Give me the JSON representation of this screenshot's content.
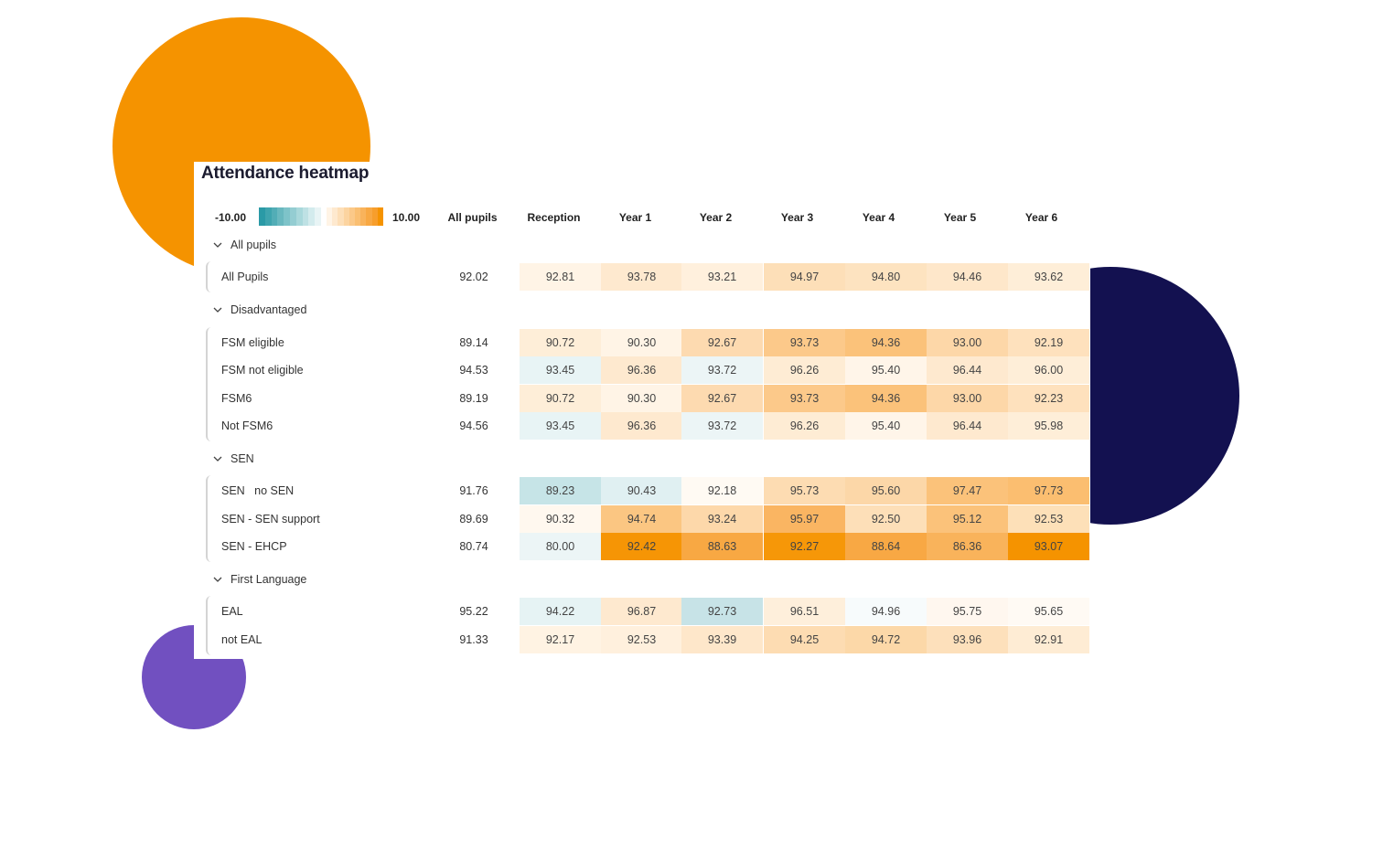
{
  "title": "Attendance heatmap",
  "legend": {
    "min_label": "-10.00",
    "max_label": "10.00",
    "negative_colors": [
      "#2a9aa6",
      "#3ea4ae",
      "#52adb6",
      "#69b8bf",
      "#7ec3c9",
      "#94cdd2",
      "#a9d8db",
      "#bee1e4",
      "#d3ebed",
      "#e8f4f5"
    ],
    "positive_colors": [
      "#fff4e6",
      "#fee9cf",
      "#fddfb8",
      "#fcd4a0",
      "#fbc989",
      "#fabf72",
      "#f9b35b",
      "#f8a843",
      "#f79e2c",
      "#f59300"
    ]
  },
  "columns": [
    "All pupils",
    "Reception",
    "Year 1",
    "Year 2",
    "Year 3",
    "Year 4",
    "Year 5",
    "Year 6"
  ],
  "groups": [
    {
      "name": "All pupils",
      "expanded": true,
      "rows": [
        {
          "label": "All Pupils",
          "all": "92.02",
          "values": [
            "92.81",
            "93.78",
            "93.21",
            "94.97",
            "94.80",
            "94.46",
            "93.62"
          ],
          "colors": [
            "#fff4e6",
            "#fee9cf",
            "#fff0dd",
            "#fddfb8",
            "#fde3c0",
            "#fee7ca",
            "#feeed8"
          ]
        }
      ]
    },
    {
      "name": "Disadvantaged",
      "expanded": true,
      "rows": [
        {
          "label": "FSM eligible",
          "all": "89.14",
          "values": [
            "90.72",
            "90.30",
            "92.67",
            "93.73",
            "94.36",
            "93.00",
            "92.19"
          ],
          "colors": [
            "#feeed8",
            "#fff4e6",
            "#fddab0",
            "#fcc98a",
            "#fbc27a",
            "#fdd7a8",
            "#fee1bd"
          ]
        },
        {
          "label": "FSM not eligible",
          "all": "94.53",
          "values": [
            "93.45",
            "96.36",
            "93.72",
            "96.26",
            "95.40",
            "96.44",
            "96.00"
          ],
          "colors": [
            "#e8f4f5",
            "#fee9cf",
            "#ecf5f6",
            "#feecd4",
            "#fff5e9",
            "#fee9cf",
            "#feeed8"
          ]
        },
        {
          "label": "FSM6",
          "all": "89.19",
          "values": [
            "90.72",
            "90.30",
            "92.67",
            "93.73",
            "94.36",
            "93.00",
            "92.23"
          ],
          "colors": [
            "#feeed8",
            "#fff4e6",
            "#fddab0",
            "#fcc98a",
            "#fbc27a",
            "#fdd7a8",
            "#fee1bd"
          ]
        },
        {
          "label": "Not FSM6",
          "all": "94.56",
          "values": [
            "93.45",
            "96.36",
            "93.72",
            "96.26",
            "95.40",
            "96.44",
            "95.98"
          ],
          "colors": [
            "#e8f4f5",
            "#fee9cf",
            "#ecf5f6",
            "#feecd4",
            "#fff5e9",
            "#fee9cf",
            "#feeed8"
          ]
        }
      ]
    },
    {
      "name": "SEN",
      "expanded": true,
      "rows": [
        {
          "label": "SEN   no SEN",
          "all": "91.76",
          "values": [
            "89.23",
            "90.43",
            "92.18",
            "95.73",
            "95.60",
            "97.47",
            "97.73"
          ],
          "colors": [
            "#c6e4e7",
            "#e0f0f2",
            "#fffaf3",
            "#fddcb2",
            "#fcd7a8",
            "#fbc27a",
            "#fbbe70"
          ]
        },
        {
          "label": "SEN - SEN support",
          "all": "89.69",
          "values": [
            "90.32",
            "94.74",
            "93.24",
            "95.97",
            "92.50",
            "95.12",
            "92.53"
          ],
          "colors": [
            "#fff8ef",
            "#fbc682",
            "#fdd8aa",
            "#fab562",
            "#fddfb8",
            "#fbc27a",
            "#fde0b8"
          ]
        },
        {
          "label": "SEN - EHCP",
          "all": "80.74",
          "values": [
            "80.00",
            "92.42",
            "88.63",
            "92.27",
            "88.64",
            "86.36",
            "93.07"
          ],
          "colors": [
            "#ecf5f6",
            "#f69505",
            "#f8a843",
            "#f69708",
            "#f8a844",
            "#f9b35b",
            "#f59300"
          ]
        }
      ]
    },
    {
      "name": "First Language",
      "expanded": true,
      "rows": [
        {
          "label": "EAL",
          "all": "95.22",
          "values": [
            "94.22",
            "96.87",
            "92.73",
            "96.51",
            "94.96",
            "95.75",
            "95.65"
          ],
          "colors": [
            "#e6f3f4",
            "#fee9cf",
            "#c7e3e7",
            "#feefdb",
            "#f7fbfc",
            "#fff7ef",
            "#fffaf4"
          ]
        },
        {
          "label": "not EAL",
          "all": "91.33",
          "values": [
            "92.17",
            "92.53",
            "93.39",
            "94.25",
            "94.72",
            "93.96",
            "92.91"
          ],
          "colors": [
            "#fff3e3",
            "#fff0dd",
            "#fee7ca",
            "#fddcb2",
            "#fcd8a8",
            "#fde0bb",
            "#feecd4"
          ]
        }
      ]
    }
  ],
  "chart_data": {
    "type": "heatmap",
    "title": "Attendance heatmap",
    "xlabel": "",
    "ylabel": "",
    "color_scale": {
      "min": -10.0,
      "max": 10.0,
      "min_color": "#2a9aa6",
      "mid_color": "#ffffff",
      "max_color": "#f59300"
    },
    "categories": [
      "Reception",
      "Year 1",
      "Year 2",
      "Year 3",
      "Year 4",
      "Year 5",
      "Year 6"
    ],
    "row_groups": [
      "All pupils",
      "Disadvantaged",
      "Disadvantaged",
      "Disadvantaged",
      "Disadvantaged",
      "SEN",
      "SEN",
      "SEN",
      "First Language",
      "First Language"
    ],
    "rows": [
      "All Pupils",
      "FSM eligible",
      "FSM not eligible",
      "FSM6",
      "Not FSM6",
      "SEN   no SEN",
      "SEN - SEN support",
      "SEN - EHCP",
      "EAL",
      "not EAL"
    ],
    "all_pupils": [
      92.02,
      89.14,
      94.53,
      89.19,
      94.56,
      91.76,
      89.69,
      80.74,
      95.22,
      91.33
    ],
    "series": [
      {
        "name": "All Pupils",
        "values": [
          92.81,
          93.78,
          93.21,
          94.97,
          94.8,
          94.46,
          93.62
        ]
      },
      {
        "name": "FSM eligible",
        "values": [
          90.72,
          90.3,
          92.67,
          93.73,
          94.36,
          93.0,
          92.19
        ]
      },
      {
        "name": "FSM not eligible",
        "values": [
          93.45,
          96.36,
          93.72,
          96.26,
          95.4,
          96.44,
          96.0
        ]
      },
      {
        "name": "FSM6",
        "values": [
          90.72,
          90.3,
          92.67,
          93.73,
          94.36,
          93.0,
          92.23
        ]
      },
      {
        "name": "Not FSM6",
        "values": [
          93.45,
          96.36,
          93.72,
          96.26,
          95.4,
          96.44,
          95.98
        ]
      },
      {
        "name": "SEN   no SEN",
        "values": [
          89.23,
          90.43,
          92.18,
          95.73,
          95.6,
          97.47,
          97.73
        ]
      },
      {
        "name": "SEN - SEN support",
        "values": [
          90.32,
          94.74,
          93.24,
          95.97,
          92.5,
          95.12,
          92.53
        ]
      },
      {
        "name": "SEN - EHCP",
        "values": [
          80.0,
          92.42,
          88.63,
          92.27,
          88.64,
          86.36,
          93.07
        ]
      },
      {
        "name": "EAL",
        "values": [
          94.22,
          96.87,
          92.73,
          96.51,
          94.96,
          95.75,
          95.65
        ]
      },
      {
        "name": "not EAL",
        "values": [
          92.17,
          92.53,
          93.39,
          94.25,
          94.72,
          93.96,
          92.91
        ]
      }
    ]
  }
}
